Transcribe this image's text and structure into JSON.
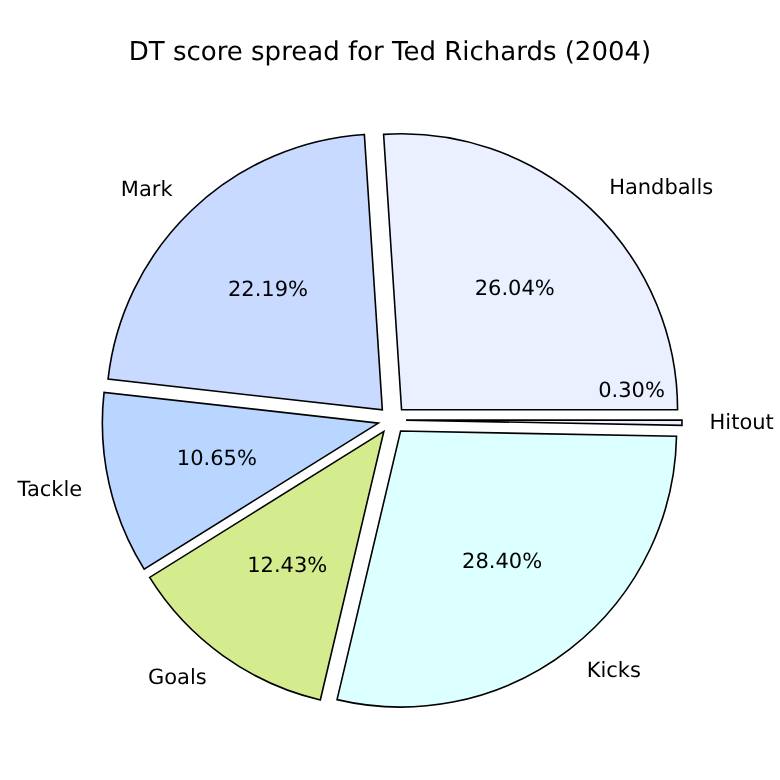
{
  "chart_data": {
    "type": "pie",
    "title": "DT score spread for Ted Richards (2004)",
    "categories": [
      "Handballs",
      "Mark",
      "Tackle",
      "Goals",
      "Kicks",
      "Hitout"
    ],
    "values": [
      26.04,
      22.19,
      10.65,
      12.43,
      28.4,
      0.3
    ],
    "value_labels": [
      "26.04%",
      "22.19%",
      "10.65%",
      "12.43%",
      "28.40%",
      "0.30%"
    ],
    "colors": [
      "#eaf0ff",
      "#c8daff",
      "#b8d6ff",
      "#d4ec8e",
      "#dcffff",
      "#eaf0ff"
    ]
  }
}
